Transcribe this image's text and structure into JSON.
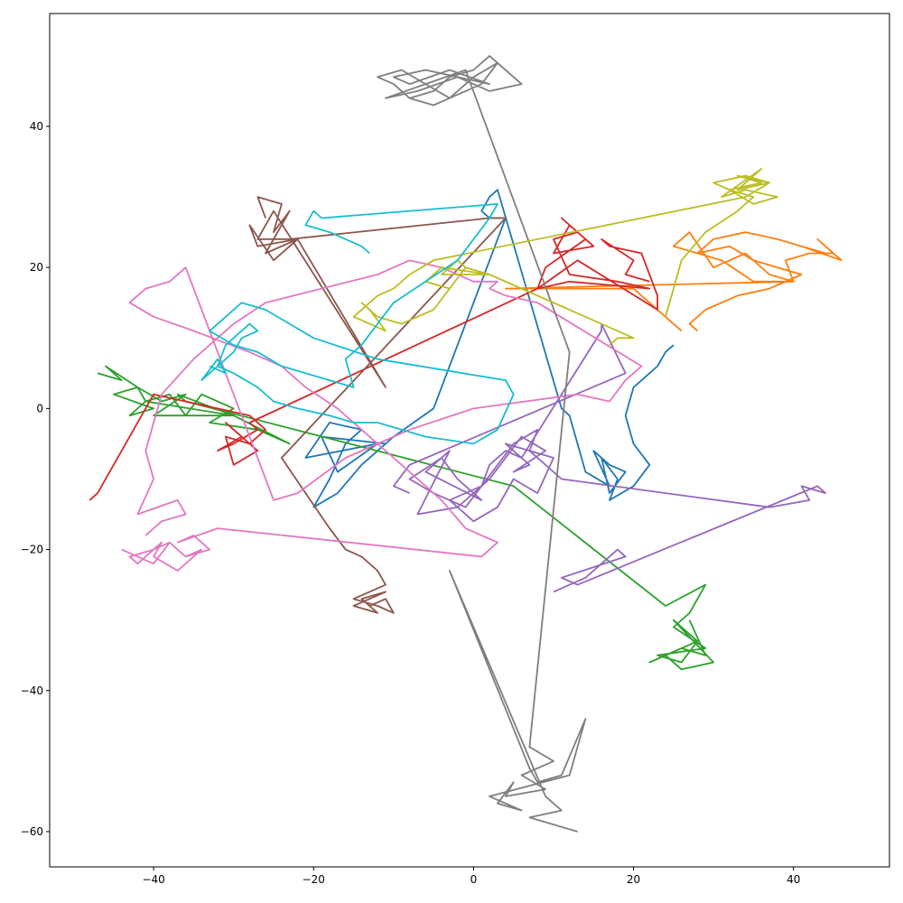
{
  "chart_data": {
    "type": "line",
    "title": "",
    "xlabel": "",
    "ylabel": "",
    "xlim": [
      -53,
      52
    ],
    "ylim": [
      -65,
      56
    ],
    "x_ticks": [
      -40,
      -20,
      0,
      20,
      40
    ],
    "y_ticks": [
      -60,
      -40,
      -20,
      0,
      20,
      40
    ],
    "x_tick_labels": [
      "−40",
      "−20",
      "0",
      "20",
      "40"
    ],
    "y_tick_labels": [
      "−60",
      "−40",
      "−20",
      "0",
      "20",
      "40"
    ],
    "grid": false,
    "legend": "none",
    "series": [
      {
        "color": "#1f77b4",
        "x": [
          25,
          24,
          23,
          22,
          20,
          19,
          20,
          22,
          20,
          17,
          18,
          16,
          17,
          19,
          17,
          15,
          17,
          14,
          12,
          11,
          3,
          2,
          1,
          2,
          4,
          -5,
          -10,
          -14,
          -17,
          -20,
          -18,
          -16,
          -14,
          -18,
          -21,
          -12,
          -17,
          -19,
          -11
        ],
        "y": [
          9,
          8,
          6,
          5,
          3,
          -1,
          -5,
          -8,
          -11,
          -13,
          -10,
          -7,
          -12,
          -9,
          -8,
          -6,
          -11,
          -9,
          -1,
          0,
          31,
          30,
          28,
          27,
          27,
          0,
          -4,
          -8,
          -12,
          -14,
          -10,
          -5,
          -3,
          -2,
          -7,
          -5,
          -9,
          -4,
          -5
        ]
      },
      {
        "color": "#ff7f0e",
        "x": [
          28,
          27,
          29,
          33,
          37,
          41,
          38,
          35,
          32,
          28,
          30,
          34,
          38,
          44,
          41,
          46,
          43,
          45,
          42,
          39,
          40,
          35,
          31,
          25,
          27,
          30,
          34,
          37,
          40,
          4,
          9,
          20,
          26
        ],
        "y": [
          11,
          12,
          14,
          16,
          17,
          19,
          20,
          21,
          23,
          22,
          24,
          25,
          24,
          22,
          23,
          21,
          24,
          22,
          22,
          21,
          18,
          18,
          21,
          23,
          25,
          20,
          22,
          19,
          18,
          17,
          17,
          17,
          11
        ]
      },
      {
        "color": "#2ca02c",
        "x": [
          -47,
          -44,
          -46,
          -42,
          -45,
          -40,
          -43,
          -41,
          -38,
          -36,
          -34,
          -30,
          -33,
          -27,
          -23,
          -30,
          -41,
          -42,
          -39,
          -36,
          -40,
          -30,
          -37,
          -36,
          5,
          24,
          29,
          27,
          25,
          29,
          23,
          26,
          28,
          25,
          30,
          26,
          24,
          28,
          22,
          26,
          29,
          27
        ],
        "y": [
          5,
          4,
          6,
          3,
          2,
          0,
          -1,
          1,
          2,
          -1,
          2,
          0,
          -2,
          -3,
          -5,
          -1,
          1,
          3,
          1,
          2,
          -1,
          -1,
          2,
          1,
          -11,
          -28,
          -25,
          -29,
          -31,
          -34,
          -35,
          -36,
          -33,
          -30,
          -36,
          -37,
          -35,
          -33,
          -36,
          -34,
          -35,
          -30
        ]
      },
      {
        "color": "#d62728",
        "x": [
          -48,
          -47,
          -40,
          -28,
          -26,
          -28,
          -31,
          -30,
          -27,
          -30,
          -31,
          -29,
          -32,
          -30,
          -27,
          -28,
          8,
          12,
          22,
          18,
          12,
          10,
          13,
          11,
          15,
          10,
          12,
          14,
          9,
          8,
          13,
          23,
          23,
          21,
          17,
          16,
          20,
          19,
          22
        ],
        "y": [
          -13,
          -12,
          2,
          -1,
          -3,
          -5,
          -4,
          -8,
          -6,
          -3,
          -2,
          -4,
          -6,
          -5,
          -3,
          -2,
          17,
          18,
          17,
          18,
          19,
          24,
          25,
          27,
          23,
          22,
          26,
          24,
          20,
          17,
          21,
          14,
          16,
          22,
          23,
          24,
          21,
          19,
          18
        ]
      },
      {
        "color": "#9467bd",
        "x": [
          10,
          12,
          14,
          16,
          18,
          19,
          11,
          13,
          43,
          44,
          41,
          42,
          37,
          11,
          9,
          7,
          8,
          5,
          3,
          1,
          -1,
          -5,
          -8,
          -4,
          -2,
          1,
          -6,
          -3,
          -7,
          -2,
          2,
          6,
          9,
          5,
          7,
          4,
          10,
          8,
          5,
          3,
          0,
          -3,
          1,
          2,
          4,
          6,
          16,
          16,
          19,
          -8,
          -10,
          -8
        ],
        "y": [
          -26,
          -25,
          -24,
          -22,
          -20,
          -21,
          -24,
          -25,
          -11,
          -12,
          -11,
          -13,
          -14,
          -10,
          -8,
          -6,
          -3,
          -5,
          -8,
          -11,
          -14,
          -12,
          -10,
          -7,
          -10,
          -13,
          -9,
          -6,
          -15,
          -14,
          -10,
          -4,
          -6,
          -9,
          -8,
          -5,
          -7,
          -12,
          -10,
          -14,
          -16,
          -13,
          -11,
          -8,
          -6,
          -7,
          11,
          12,
          5,
          -8,
          -11,
          -12
        ]
      },
      {
        "color": "#8c564b",
        "x": [
          -26,
          -27,
          -24,
          -25,
          -23,
          -26,
          -22,
          -27,
          -28,
          -25,
          -22,
          -11,
          -25,
          -27,
          -27,
          -23,
          2,
          4,
          -24,
          -21,
          -18,
          -16,
          -14,
          -12,
          -11,
          -13,
          -15,
          -12,
          -10,
          -11,
          -13,
          -12,
          -14,
          -11,
          -15,
          -12
        ],
        "y": [
          27,
          30,
          29,
          25,
          28,
          22,
          24,
          23,
          26,
          21,
          24,
          3,
          28,
          24,
          24,
          24,
          27,
          27,
          -7,
          -12,
          -17,
          -20,
          -21,
          -23,
          -25,
          -26,
          -27,
          -28,
          -29,
          -27,
          -28,
          -29,
          -27,
          -26,
          -28,
          -29
        ]
      },
      {
        "color": "#e377c2",
        "x": [
          -44,
          -42,
          -40,
          -38,
          -36,
          -34,
          -37,
          -40,
          -39,
          -42,
          -43,
          -40,
          -38,
          -36,
          -33,
          -35,
          -37,
          -32,
          1,
          2,
          3,
          1,
          -1,
          -4,
          -10,
          -14,
          -17,
          -21,
          -24,
          -28,
          -35,
          -40,
          -43,
          -41,
          -38,
          -36,
          -25,
          -22,
          -16,
          -8,
          0,
          13,
          17,
          19,
          20,
          21,
          8,
          4,
          2,
          3,
          0,
          -4,
          -8,
          -12,
          -19,
          -26,
          -30,
          -35,
          -39,
          -41,
          -40,
          -42,
          -37,
          -36,
          -39,
          -41
        ],
        "y": [
          -20,
          -21,
          -22,
          -19,
          -21,
          -20,
          -23,
          -21,
          -19,
          -22,
          -21,
          -20,
          -19,
          -21,
          -20,
          -18,
          -19,
          -17,
          -21,
          -20,
          -19,
          -18,
          -17,
          -13,
          -7,
          -3,
          0,
          3,
          6,
          8,
          11,
          13,
          15,
          17,
          18,
          20,
          -13,
          -12,
          -7,
          -3,
          0,
          2,
          1,
          4,
          5,
          6,
          15,
          16,
          17,
          18,
          18,
          20,
          21,
          19,
          17,
          15,
          12,
          7,
          2,
          -6,
          -10,
          -15,
          -13,
          -15,
          -16,
          -18
        ]
      },
      {
        "color": "#7f7f7f",
        "x": [
          -8,
          -5,
          -3,
          0,
          2,
          5,
          3,
          1,
          -1,
          -5,
          -8,
          -10,
          -12,
          -9,
          -6,
          -3,
          0,
          3,
          6,
          2,
          -2,
          -6,
          -10,
          -8,
          -3,
          2,
          -2,
          -7,
          -11,
          -6,
          -1,
          12,
          7,
          10,
          6,
          9,
          4,
          5,
          3,
          6,
          2,
          12,
          14,
          11,
          8,
          7,
          -3,
          9,
          11,
          7,
          13
        ],
        "y": [
          44,
          45,
          47,
          48,
          50,
          47,
          49,
          46,
          45,
          43,
          44,
          46,
          47,
          48,
          46,
          44,
          47,
          49,
          46,
          45,
          47,
          48,
          47,
          46,
          48,
          46,
          47,
          45,
          44,
          46,
          48,
          8,
          -48,
          -50,
          -52,
          -54,
          -55,
          -53,
          -56,
          -57,
          -55,
          -52,
          -44,
          -52,
          -53,
          -51,
          -23,
          -55,
          -57,
          -58,
          -60
        ]
      },
      {
        "color": "#bcbd22",
        "x": [
          24,
          25,
          26,
          29,
          33,
          35,
          32,
          30,
          34,
          37,
          33,
          36,
          31,
          34,
          38,
          35,
          32,
          36,
          33,
          37,
          34,
          -5,
          -8,
          -10,
          -12,
          -15,
          -13,
          -11,
          -13,
          -14,
          -12,
          -9,
          -5,
          -3,
          -1,
          -2,
          -4,
          2,
          -4,
          -6,
          -3,
          -1,
          2,
          20,
          18,
          17
        ],
        "y": [
          13,
          17,
          21,
          25,
          28,
          30,
          31,
          32,
          33,
          32,
          31,
          34,
          30,
          31,
          30,
          29,
          31,
          32,
          33,
          32,
          30,
          21,
          19,
          17,
          16,
          13,
          12,
          11,
          14,
          15,
          13,
          12,
          14,
          17,
          20,
          21,
          19,
          19,
          20,
          18,
          17,
          20,
          19,
          10,
          10,
          9
        ]
      },
      {
        "color": "#17becf",
        "x": [
          -33,
          -31,
          -32,
          -34,
          -30,
          -29,
          -27,
          -28,
          -31,
          -32,
          -30,
          -27,
          -25,
          -22,
          -18,
          -15,
          -12,
          -9,
          -6,
          0,
          3,
          5,
          4,
          -12,
          -20,
          -23,
          -26,
          -29,
          -31,
          -33,
          -30,
          -27,
          -24,
          -21,
          -18,
          -15,
          -16,
          -14,
          -12,
          -10,
          -6,
          -2,
          0,
          2,
          3,
          -19,
          -20,
          -21,
          -18,
          -16,
          -14,
          -13
        ],
        "y": [
          6,
          5,
          7,
          4,
          8,
          10,
          11,
          12,
          9,
          6,
          5,
          3,
          1,
          0,
          -1,
          -2,
          -2,
          -3,
          -4,
          -5,
          -3,
          2,
          4,
          7,
          10,
          12,
          14,
          15,
          13,
          11,
          9,
          8,
          6,
          5,
          4,
          3,
          7,
          9,
          12,
          15,
          18,
          21,
          24,
          27,
          29,
          27,
          28,
          26,
          25,
          24,
          23,
          22
        ]
      }
    ]
  }
}
